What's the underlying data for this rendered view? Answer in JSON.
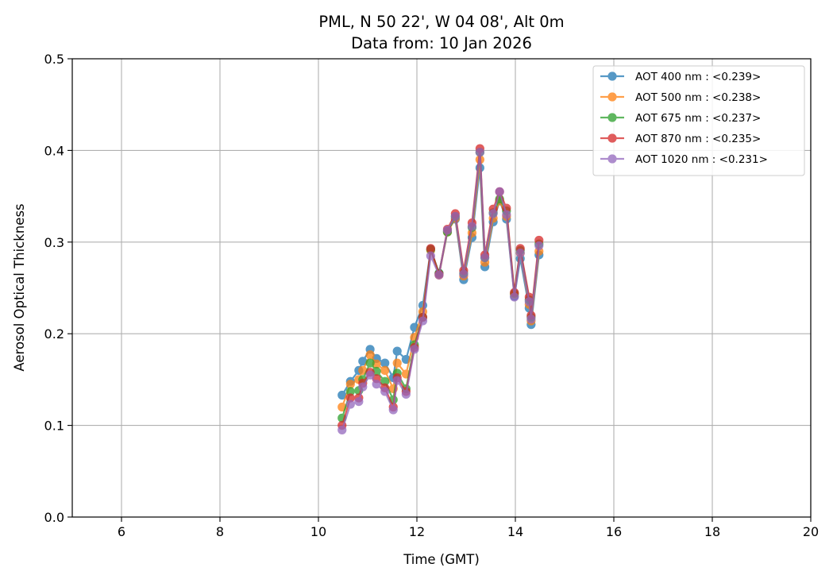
{
  "chart_data": {
    "type": "line",
    "title": "PML, N 50 22', W 04 08', Alt 0m",
    "subtitle": "Data from: 10 Jan 2026",
    "xlabel": "Time (GMT)",
    "ylabel": "Aerosol Optical Thickness",
    "xlim": [
      5,
      20
    ],
    "ylim": [
      0,
      0.5
    ],
    "xticks": [
      6,
      8,
      10,
      12,
      14,
      16,
      18,
      20
    ],
    "xtick_labels": [
      "6",
      "8",
      "10",
      "12",
      "14",
      "16",
      "18",
      "20"
    ],
    "yticks": [
      0,
      0.1,
      0.2,
      0.3,
      0.4,
      0.5
    ],
    "ytick_labels": [
      "0.0",
      "0.1",
      "0.2",
      "0.3",
      "0.4",
      "0.5"
    ],
    "grid": true,
    "legend_position": "top-right",
    "x": [
      10.48,
      10.65,
      10.82,
      10.9,
      11.05,
      11.18,
      11.35,
      11.52,
      11.6,
      11.78,
      11.95,
      12.12,
      12.28,
      12.45,
      12.62,
      12.78,
      12.95,
      13.12,
      13.28,
      13.38,
      13.55,
      13.68,
      13.82,
      13.98,
      14.1,
      14.28,
      14.32,
      14.48
    ],
    "series": [
      {
        "name": "AOT 400 nm : <0.239>",
        "color": "#1f77b4",
        "values": [
          0.133,
          0.148,
          0.16,
          0.17,
          0.183,
          0.173,
          0.168,
          0.152,
          0.181,
          0.172,
          0.207,
          0.231,
          0.292,
          0.266,
          0.312,
          0.325,
          0.259,
          0.305,
          0.381,
          0.273,
          0.322,
          0.345,
          0.325,
          0.241,
          0.282,
          0.228,
          0.21,
          0.286
        ]
      },
      {
        "name": "AOT 500 nm : <0.238>",
        "color": "#ff7f0e",
        "values": [
          0.12,
          0.145,
          0.15,
          0.16,
          0.177,
          0.167,
          0.16,
          0.14,
          0.168,
          0.156,
          0.196,
          0.224,
          0.291,
          0.264,
          0.311,
          0.326,
          0.263,
          0.31,
          0.39,
          0.278,
          0.326,
          0.345,
          0.328,
          0.243,
          0.288,
          0.232,
          0.214,
          0.29
        ]
      },
      {
        "name": "AOT 675 nm : <0.237>",
        "color": "#2ca02c",
        "values": [
          0.108,
          0.137,
          0.138,
          0.15,
          0.168,
          0.159,
          0.148,
          0.128,
          0.157,
          0.14,
          0.188,
          0.218,
          0.292,
          0.266,
          0.311,
          0.328,
          0.266,
          0.316,
          0.398,
          0.283,
          0.332,
          0.347,
          0.334,
          0.244,
          0.291,
          0.237,
          0.218,
          0.298
        ]
      },
      {
        "name": "AOT 870 nm : <0.235>",
        "color": "#d62728",
        "values": [
          0.1,
          0.13,
          0.13,
          0.146,
          0.158,
          0.151,
          0.141,
          0.12,
          0.152,
          0.137,
          0.185,
          0.218,
          0.293,
          0.265,
          0.314,
          0.331,
          0.269,
          0.321,
          0.402,
          0.286,
          0.336,
          0.355,
          0.337,
          0.245,
          0.293,
          0.24,
          0.22,
          0.302
        ]
      },
      {
        "name": "AOT 1020 nm : <0.231>",
        "color": "#9467bd",
        "values": [
          0.095,
          0.123,
          0.126,
          0.142,
          0.155,
          0.145,
          0.137,
          0.117,
          0.149,
          0.134,
          0.183,
          0.214,
          0.285,
          0.264,
          0.313,
          0.328,
          0.265,
          0.317,
          0.398,
          0.283,
          0.331,
          0.355,
          0.33,
          0.24,
          0.288,
          0.235,
          0.216,
          0.296
        ]
      }
    ]
  }
}
